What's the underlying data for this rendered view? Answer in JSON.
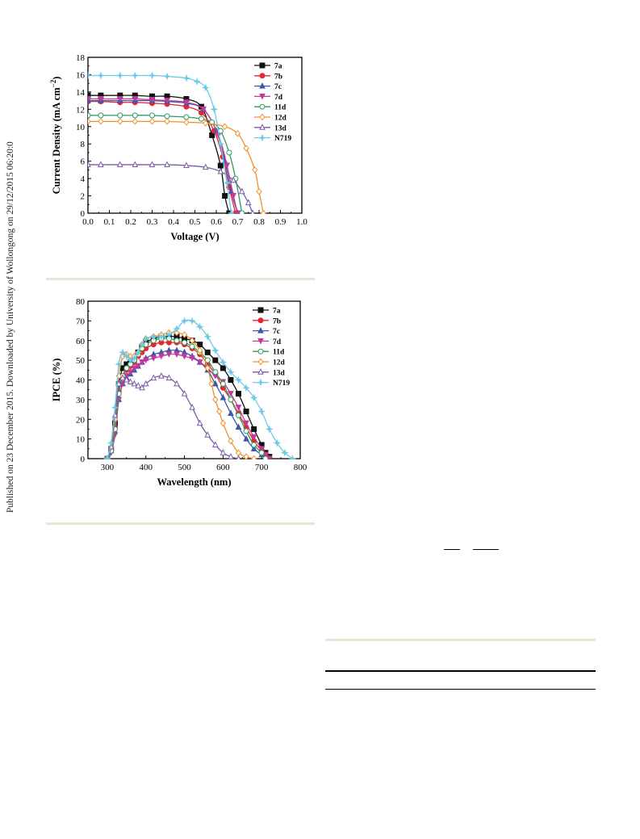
{
  "side_note": "Published on 23 December 2015. Downloaded by University of Wollongong on 29/12/2015 06:20:06.",
  "colors": {
    "7a": "#111111",
    "7b": "#e8262b",
    "7c": "#3a5aa8",
    "7d": "#c2399b",
    "11d": "#2e9a5c",
    "12d": "#f0922a",
    "13d": "#7a5aa6",
    "N719": "#6ec8e8",
    "rule": "#e6e6d8"
  },
  "chart_data": [
    {
      "type": "line",
      "title": "",
      "xlabel": "Voltage (V)",
      "ylabel": "Current Density (mA cm−2)",
      "ylabel_parts": {
        "main": "Current Density (mA cm",
        "sup": "−2",
        "tail": ")"
      },
      "xlim": [
        0.0,
        1.0
      ],
      "ylim": [
        0,
        18
      ],
      "xticks": [
        "0.0",
        "0.1",
        "0.2",
        "0.3",
        "0.4",
        "0.5",
        "0.6",
        "0.7",
        "0.8",
        "0.9",
        "1.0"
      ],
      "yticks": [
        "0",
        "2",
        "4",
        "6",
        "8",
        "10",
        "12",
        "14",
        "16",
        "18"
      ],
      "grid": false,
      "legend_position": "top-right",
      "series": [
        {
          "name": "7a",
          "marker": "square",
          "x": [
            0,
            0.06,
            0.15,
            0.22,
            0.3,
            0.37,
            0.46,
            0.53,
            0.58,
            0.62,
            0.64,
            0.66
          ],
          "y": [
            13.6,
            13.6,
            13.6,
            13.6,
            13.5,
            13.5,
            13.2,
            12.3,
            9.0,
            5.5,
            2.0,
            0
          ]
        },
        {
          "name": "7b",
          "marker": "circle",
          "x": [
            0,
            0.06,
            0.15,
            0.22,
            0.3,
            0.37,
            0.46,
            0.53,
            0.59,
            0.63,
            0.66,
            0.69
          ],
          "y": [
            12.9,
            12.9,
            12.8,
            12.8,
            12.7,
            12.6,
            12.3,
            11.6,
            9.5,
            6.5,
            3.0,
            0
          ]
        },
        {
          "name": "7c",
          "marker": "triangle-up",
          "x": [
            0,
            0.06,
            0.15,
            0.22,
            0.3,
            0.37,
            0.46,
            0.54,
            0.6,
            0.64,
            0.67,
            0.7
          ],
          "y": [
            13.0,
            13.0,
            13.0,
            13.0,
            13.0,
            12.9,
            12.7,
            12.0,
            9.5,
            6.0,
            2.5,
            0
          ]
        },
        {
          "name": "7d",
          "marker": "triangle-down",
          "x": [
            0,
            0.06,
            0.15,
            0.22,
            0.3,
            0.37,
            0.46,
            0.54,
            0.61,
            0.65,
            0.68,
            0.7
          ],
          "y": [
            13.2,
            13.2,
            13.2,
            13.2,
            13.1,
            13.0,
            12.8,
            12.0,
            9.0,
            5.5,
            2.0,
            0
          ]
        },
        {
          "name": "11d",
          "marker": "circle-open",
          "x": [
            0,
            0.06,
            0.15,
            0.22,
            0.3,
            0.37,
            0.46,
            0.53,
            0.58,
            0.62,
            0.66,
            0.69,
            0.72
          ],
          "y": [
            11.3,
            11.3,
            11.3,
            11.3,
            11.3,
            11.2,
            11.1,
            10.9,
            10.5,
            9.5,
            7.0,
            4.0,
            0
          ]
        },
        {
          "name": "12d",
          "marker": "diamond-open",
          "x": [
            0,
            0.06,
            0.15,
            0.22,
            0.3,
            0.37,
            0.46,
            0.55,
            0.64,
            0.7,
            0.74,
            0.78,
            0.8,
            0.82
          ],
          "y": [
            10.6,
            10.6,
            10.6,
            10.6,
            10.6,
            10.6,
            10.5,
            10.4,
            10.0,
            9.2,
            7.5,
            5.0,
            2.5,
            0
          ]
        },
        {
          "name": "13d",
          "marker": "triangle-open",
          "x": [
            0,
            0.06,
            0.15,
            0.22,
            0.3,
            0.37,
            0.46,
            0.55,
            0.62,
            0.68,
            0.72,
            0.75,
            0.77
          ],
          "y": [
            5.6,
            5.6,
            5.6,
            5.6,
            5.6,
            5.6,
            5.5,
            5.3,
            4.8,
            3.8,
            2.5,
            1.2,
            0
          ]
        },
        {
          "name": "N719",
          "marker": "star",
          "x": [
            0,
            0.06,
            0.15,
            0.22,
            0.3,
            0.37,
            0.46,
            0.51,
            0.55,
            0.59,
            0.62,
            0.65,
            0.67
          ],
          "y": [
            15.9,
            15.9,
            15.9,
            15.9,
            15.9,
            15.8,
            15.6,
            15.2,
            14.5,
            12.0,
            8.0,
            3.5,
            0
          ]
        }
      ]
    },
    {
      "type": "line",
      "title": "",
      "xlabel": "Wavelength (nm)",
      "ylabel": "IPCE (%)",
      "xlim": [
        250,
        800
      ],
      "ylim": [
        0,
        80
      ],
      "xticks": [
        "300",
        "400",
        "500",
        "600",
        "700",
        "800"
      ],
      "yticks": [
        "0",
        "10",
        "20",
        "30",
        "40",
        "50",
        "60",
        "70",
        "80"
      ],
      "grid": false,
      "legend_position": "top-right",
      "series": [
        {
          "name": "7a",
          "marker": "square",
          "x": [
            300,
            310,
            320,
            330,
            340,
            350,
            360,
            370,
            380,
            390,
            400,
            420,
            440,
            460,
            480,
            500,
            520,
            540,
            560,
            580,
            600,
            620,
            640,
            660,
            680,
            700,
            710,
            720
          ],
          "y": [
            0,
            5,
            18,
            38,
            46,
            48,
            49,
            51,
            54,
            57,
            59,
            61,
            62,
            62,
            62,
            61,
            60,
            58,
            54,
            50,
            46,
            40,
            33,
            24,
            15,
            7,
            3,
            1
          ]
        },
        {
          "name": "7b",
          "marker": "circle",
          "x": [
            300,
            310,
            320,
            330,
            340,
            350,
            360,
            370,
            380,
            390,
            400,
            420,
            440,
            460,
            480,
            500,
            520,
            540,
            560,
            580,
            600,
            620,
            640,
            660,
            680,
            700,
            710,
            720
          ],
          "y": [
            0,
            4,
            16,
            34,
            42,
            45,
            47,
            49,
            52,
            54,
            56,
            58,
            59,
            59,
            59,
            58,
            56,
            53,
            48,
            43,
            36,
            30,
            23,
            16,
            9,
            4,
            2,
            0
          ]
        },
        {
          "name": "7c",
          "marker": "triangle-up",
          "x": [
            300,
            310,
            320,
            330,
            340,
            350,
            360,
            370,
            380,
            390,
            400,
            420,
            440,
            460,
            480,
            500,
            520,
            540,
            560,
            580,
            600,
            620,
            640,
            660,
            680,
            700,
            710
          ],
          "y": [
            0,
            4,
            14,
            30,
            38,
            41,
            43,
            45,
            47,
            49,
            51,
            53,
            54,
            55,
            55,
            54,
            52,
            49,
            45,
            38,
            31,
            23,
            16,
            10,
            5,
            2,
            0
          ]
        },
        {
          "name": "7d",
          "marker": "triangle-down",
          "x": [
            300,
            310,
            320,
            330,
            340,
            350,
            360,
            370,
            380,
            390,
            400,
            420,
            440,
            460,
            480,
            500,
            520,
            540,
            560,
            580,
            600,
            620,
            640,
            660,
            680,
            700,
            710,
            720
          ],
          "y": [
            0,
            3,
            12,
            30,
            38,
            42,
            44,
            46,
            47,
            49,
            50,
            51,
            52,
            53,
            53,
            52,
            51,
            49,
            46,
            42,
            39,
            33,
            26,
            18,
            11,
            5,
            2,
            0
          ]
        },
        {
          "name": "11d",
          "marker": "circle-open",
          "x": [
            300,
            310,
            320,
            330,
            340,
            350,
            360,
            370,
            380,
            390,
            400,
            420,
            440,
            460,
            480,
            500,
            520,
            540,
            560,
            580,
            600,
            620,
            640,
            660,
            680,
            700,
            710
          ],
          "y": [
            0,
            4,
            15,
            33,
            42,
            46,
            48,
            50,
            53,
            56,
            58,
            60,
            61,
            61,
            60,
            59,
            57,
            54,
            50,
            44,
            38,
            30,
            22,
            14,
            7,
            3,
            0
          ]
        },
        {
          "name": "12d",
          "marker": "diamond-open",
          "x": [
            300,
            310,
            320,
            330,
            340,
            350,
            360,
            370,
            380,
            390,
            400,
            420,
            440,
            460,
            480,
            500,
            520,
            540,
            560,
            570,
            580,
            590,
            600,
            620,
            640,
            660,
            680
          ],
          "y": [
            0,
            6,
            20,
            42,
            52,
            53,
            52,
            52,
            54,
            58,
            61,
            62,
            63,
            64,
            64,
            63,
            60,
            55,
            46,
            38,
            30,
            24,
            18,
            9,
            3,
            1,
            0
          ]
        },
        {
          "name": "13d",
          "marker": "triangle-open",
          "x": [
            300,
            310,
            320,
            330,
            340,
            350,
            360,
            370,
            380,
            390,
            400,
            420,
            440,
            460,
            480,
            500,
            520,
            540,
            560,
            580,
            600,
            620,
            640
          ],
          "y": [
            0,
            6,
            22,
            38,
            41,
            40,
            39,
            38,
            37,
            36,
            38,
            41,
            42,
            41,
            38,
            33,
            26,
            18,
            12,
            7,
            3,
            1,
            0
          ]
        },
        {
          "name": "N719",
          "marker": "star",
          "x": [
            300,
            310,
            320,
            330,
            340,
            350,
            360,
            370,
            380,
            390,
            400,
            420,
            440,
            460,
            480,
            500,
            520,
            540,
            560,
            580,
            600,
            620,
            640,
            660,
            680,
            700,
            720,
            740,
            760,
            780
          ],
          "y": [
            0,
            8,
            26,
            48,
            54,
            52,
            50,
            51,
            54,
            58,
            61,
            62,
            62,
            63,
            66,
            70,
            70,
            67,
            62,
            55,
            49,
            44,
            40,
            36,
            31,
            24,
            15,
            8,
            3,
            0
          ]
        }
      ]
    }
  ]
}
